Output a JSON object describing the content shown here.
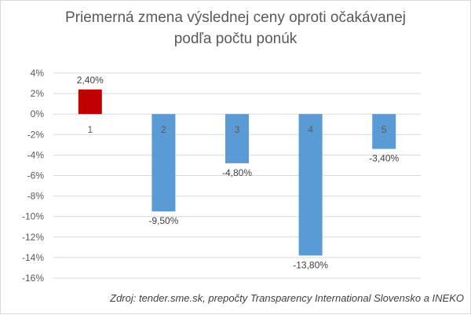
{
  "chart_data": {
    "type": "bar",
    "title_line1": "Priemerná zmena výslednej ceny oproti očakávanej",
    "title_line2": "podľa počtu ponúk",
    "categories": [
      "1",
      "2",
      "3",
      "4",
      "5"
    ],
    "values": [
      2.4,
      -9.5,
      -4.8,
      -13.8,
      -3.4
    ],
    "value_labels": [
      "2,40%",
      "-9,50%",
      "-4,80%",
      "-13,80%",
      "-3,40%"
    ],
    "bar_colors": [
      "#c00000",
      "#5b9bd5",
      "#5b9bd5",
      "#5b9bd5",
      "#5b9bd5"
    ],
    "ylim": [
      -16,
      4
    ],
    "yticks": [
      4,
      2,
      0,
      -2,
      -4,
      -6,
      -8,
      -10,
      -12,
      -14,
      -16
    ],
    "ytick_labels": [
      "4%",
      "2%",
      "0%",
      "-2%",
      "-4%",
      "-6%",
      "-8%",
      "-10%",
      "-12%",
      "-14%",
      "-16%"
    ],
    "grid": true,
    "xlabel": "",
    "ylabel": "",
    "source": "Zdroj: tender.sme.sk, prepočty Transparency International Slovensko a INEKO"
  }
}
